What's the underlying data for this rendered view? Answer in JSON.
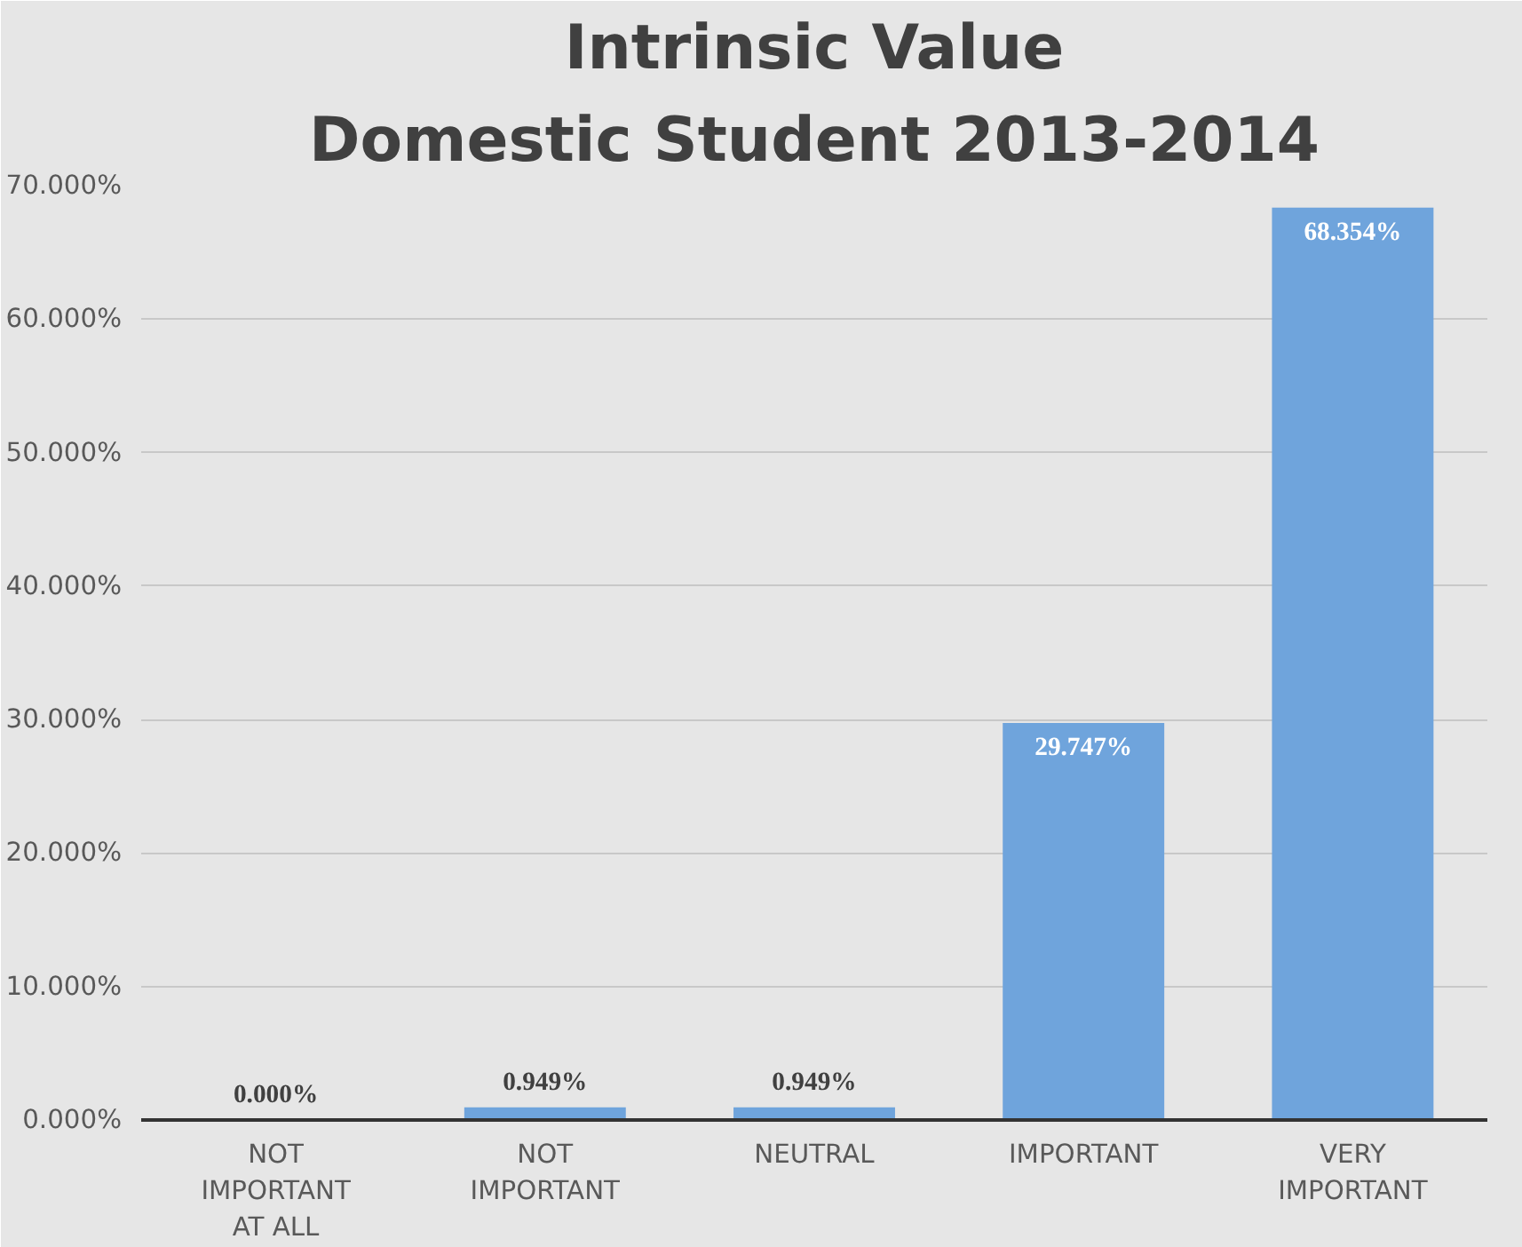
{
  "chart_data": {
    "type": "bar",
    "title": "Intrinsic Value",
    "subtitle": "Domestic Student 2013-2014",
    "categories": [
      "NOT IMPORTANT AT ALL",
      "NOT IMPORTANT",
      "NEUTRAL",
      "IMPORTANT",
      "VERY IMPORTANT"
    ],
    "values": [
      0,
      0.949,
      0.949,
      29.747,
      68.354
    ],
    "value_labels": [
      "0.000%",
      "0.949%",
      "0.949%",
      "29.747%",
      "68.354%"
    ],
    "color": "#6fa4dc",
    "ylim": [
      0,
      70
    ],
    "yticks": [
      {
        "value": 0,
        "label": "0.000%"
      },
      {
        "value": 10,
        "label": "10.000%"
      },
      {
        "value": 20,
        "label": "20.000%"
      },
      {
        "value": 30,
        "label": "30.000%"
      },
      {
        "value": 40,
        "label": "40.000%"
      },
      {
        "value": 50,
        "label": "50.000%"
      },
      {
        "value": 60,
        "label": "60.000%"
      },
      {
        "value": 70,
        "label": "70.000%"
      }
    ],
    "grid": "y"
  }
}
